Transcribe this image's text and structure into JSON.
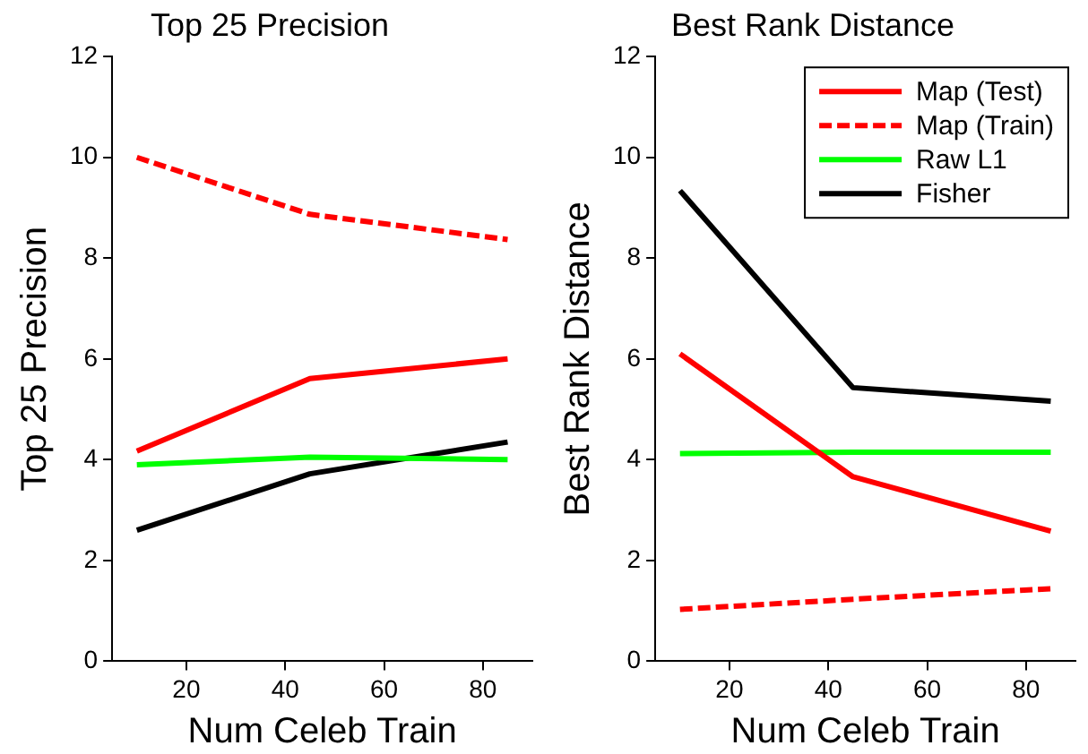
{
  "chart_data": [
    {
      "type": "line",
      "title": "Top 25 Precision",
      "xlabel": "Num Celeb Train",
      "ylabel": "Top 25 Precision",
      "x": [
        10,
        45,
        85
      ],
      "xlim": [
        5,
        90
      ],
      "xticks": [
        20,
        40,
        60,
        80
      ],
      "ylim": [
        0,
        12
      ],
      "yticks": [
        0,
        2,
        4,
        6,
        8,
        10,
        12
      ],
      "grid": false,
      "legend": false,
      "marker": "none",
      "series": [
        {
          "color": "#ff0000",
          "line_style": "solid",
          "values": [
            4.17,
            5.61,
            6.0
          ]
        },
        {
          "color": "#ff0000",
          "line_style": "dashed",
          "values": [
            10.0,
            8.87,
            8.37
          ]
        },
        {
          "color": "#00ff00",
          "line_style": "solid",
          "values": [
            3.9,
            4.05,
            4.0
          ]
        },
        {
          "color": "#000000",
          "line_style": "solid",
          "values": [
            2.6,
            3.72,
            4.35
          ]
        }
      ]
    },
    {
      "type": "line",
      "title": "Best Rank Distance",
      "xlabel": "Num Celeb Train",
      "ylabel": "Best Rank Distance",
      "x": [
        10,
        45,
        85
      ],
      "xlim": [
        5,
        90
      ],
      "xticks": [
        20,
        40,
        60,
        80
      ],
      "ylim": [
        0,
        12
      ],
      "yticks": [
        0,
        2,
        4,
        6,
        8,
        10,
        12
      ],
      "grid": false,
      "legend": "top right",
      "marker": "none",
      "series": [
        {
          "name": "Map (Test)",
          "color": "#ff0000",
          "line_style": "solid",
          "values": [
            6.1,
            3.66,
            2.58
          ]
        },
        {
          "name": "Map (Train)",
          "color": "#ff0000",
          "line_style": "dashed",
          "values": [
            1.03,
            1.23,
            1.44
          ]
        },
        {
          "name": "Raw L1",
          "color": "#00ff00",
          "line_style": "solid",
          "values": [
            4.12,
            4.15,
            4.15
          ]
        },
        {
          "name": "Fisher",
          "color": "#000000",
          "line_style": "solid",
          "values": [
            9.34,
            5.43,
            5.16
          ]
        }
      ]
    }
  ]
}
